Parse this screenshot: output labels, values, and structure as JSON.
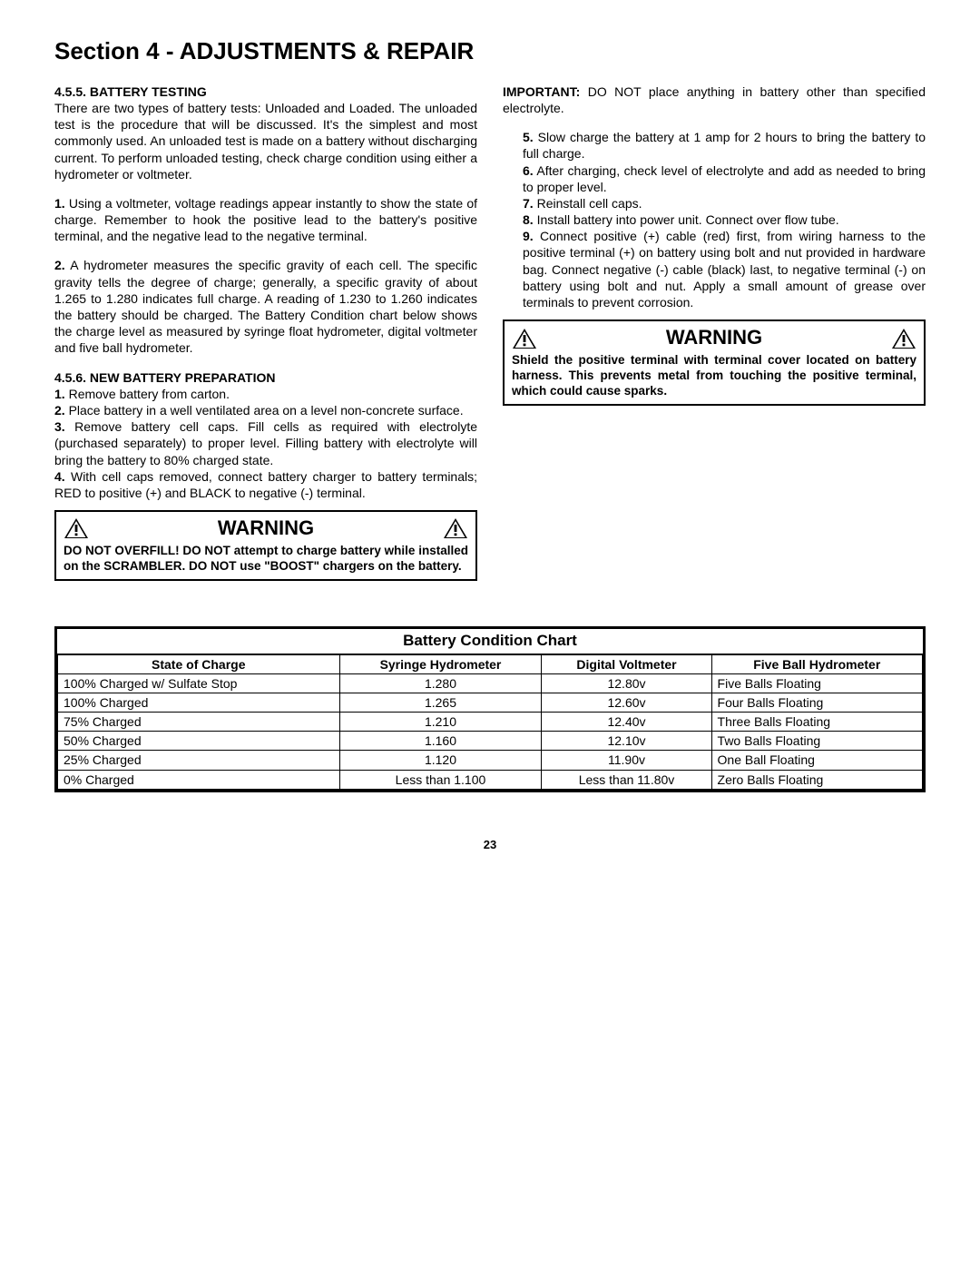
{
  "sectionTitle": "Section 4 - ADJUSTMENTS & REPAIR",
  "left": {
    "h455": "4.5.5.  BATTERY TESTING",
    "p455": "There are two types of battery tests: Unloaded and Loaded. The unloaded test is the procedure that will be discussed. It's the simplest and most commonly used. An unloaded test is made on a battery without discharging current. To perform unloaded testing, check charge condition using either a hydrometer or voltmeter.",
    "p455_1n": "1.",
    "p455_1": " Using a voltmeter, voltage readings appear instantly to show the state of charge. Remember to hook the positive lead to the battery's positive terminal, and the negative lead to the negative terminal.",
    "p455_2n": "2.",
    "p455_2": " A hydrometer measures the specific gravity of each cell. The specific gravity tells the degree of charge; generally, a specific gravity of about 1.265 to 1.280 indicates full charge. A reading of 1.230 to 1.260 indicates the battery should be charged. The Battery Condition chart below shows the charge level as measured by syringe float hydrometer, digital voltmeter and five ball hydrometer.",
    "h456": "4.5.6.  NEW BATTERY PREPARATION",
    "s1n": "1.",
    "s1": " Remove battery from carton.",
    "s2n": "2.",
    "s2": " Place battery in a well ventilated area on a level non-concrete surface.",
    "s3n": "3.",
    "s3": " Remove battery cell caps. Fill cells as required with electrolyte (purchased separately) to proper level. Filling battery with electrolyte will bring the battery to 80% charged state.",
    "s4n": "4.",
    "s4": " With cell caps removed, connect battery charger to battery terminals; RED to positive (+) and BLACK to negative (-) terminal.",
    "warnTitle": "WARNING",
    "warnBody": "DO NOT OVERFILL!  DO NOT attempt to charge battery while installed on the SCRAMBLER. DO NOT use \"BOOST\" chargers on the battery."
  },
  "right": {
    "importantLabel": "IMPORTANT:",
    "importantText": " DO NOT place anything in battery other than specified electrolyte.",
    "s5n": "5.",
    "s5": " Slow charge the battery at 1 amp for 2 hours to bring the battery to full charge.",
    "s6n": "6.",
    "s6": " After charging, check level of electrolyte and add as needed to bring to proper level.",
    "s7n": "7.",
    "s7": " Reinstall cell caps.",
    "s8n": "8.",
    "s8": " Install battery into power unit. Connect over flow tube.",
    "s9n": "9.",
    "s9": " Connect positive (+) cable (red) first, from wiring harness to the positive terminal (+) on battery using bolt and nut provided in hardware bag. Connect negative (-) cable (black) last, to negative terminal (-) on battery using bolt and nut. Apply a small amount of grease over terminals to prevent corrosion.",
    "warnTitle": "WARNING",
    "warnBody": "Shield the positive terminal with terminal cover located on battery harness. This prevents metal from touching the positive terminal, which could cause sparks."
  },
  "chart": {
    "title": "Battery Condition Chart",
    "headers": [
      "State of Charge",
      "Syringe Hydrometer",
      "Digital Voltmeter",
      "Five Ball Hydrometer"
    ],
    "rows": [
      [
        "100% Charged w/ Sulfate Stop",
        "1.280",
        "12.80v",
        "Five Balls Floating"
      ],
      [
        "100% Charged",
        "1.265",
        "12.60v",
        "Four Balls Floating"
      ],
      [
        "75% Charged",
        "1.210",
        "12.40v",
        "Three Balls Floating"
      ],
      [
        "50% Charged",
        "1.160",
        "12.10v",
        "Two Balls Floating"
      ],
      [
        "25% Charged",
        "1.120",
        "11.90v",
        "One Ball Floating"
      ],
      [
        "0% Charged",
        "Less than 1.100",
        "Less than 11.80v",
        "Zero Balls Floating"
      ]
    ]
  },
  "pageNum": "23",
  "colors": {
    "text": "#000000",
    "border": "#000000",
    "background": "#ffffff"
  }
}
